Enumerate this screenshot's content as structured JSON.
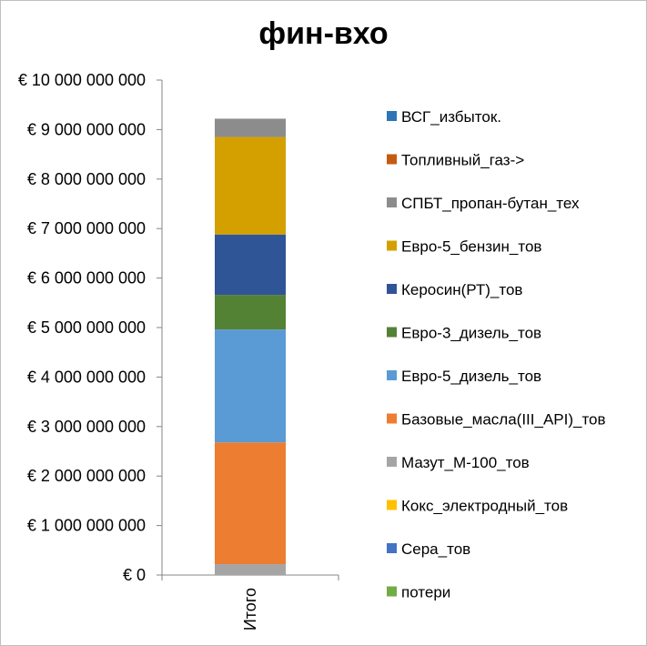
{
  "chart_data": {
    "type": "bar",
    "stacked": true,
    "title": "фин-вхо",
    "categories": [
      "Итого"
    ],
    "ylim": [
      0,
      10000000000
    ],
    "yticks": [
      "€ 0",
      "€ 1 000 000 000",
      "€ 2 000 000 000",
      "€ 3 000 000 000",
      "€ 4 000 000 000",
      "€ 5 000 000 000",
      "€ 6 000 000 000",
      "€ 7 000 000 000",
      "€ 8 000 000 000",
      "€ 9 000 000 000",
      "€ 10 000 000 000"
    ],
    "grid": "vertical-axis-line",
    "legend_position": "right",
    "series": [
      {
        "name": "потери",
        "color": "#70ad47",
        "values": [
          0
        ]
      },
      {
        "name": "Сера_тов",
        "color": "#4472c4",
        "values": [
          0
        ]
      },
      {
        "name": "Кокс_электродный_тов",
        "color": "#ffc000",
        "values": [
          0
        ]
      },
      {
        "name": "Мазут_М-100_тов",
        "color": "#a5a5a5",
        "values": [
          220000000
        ]
      },
      {
        "name": "Базовые_масла(III_API)_тов",
        "color": "#ed7d31",
        "values": [
          2460000000
        ]
      },
      {
        "name": "Евро-5_дизель_тов",
        "color": "#5b9bd5",
        "values": [
          2280000000
        ]
      },
      {
        "name": "Евро-3_дизель_тов",
        "color": "#548235",
        "values": [
          700000000
        ]
      },
      {
        "name": "Керосин(РТ)_тов",
        "color": "#2f5597",
        "values": [
          1220000000
        ]
      },
      {
        "name": "Евро-5_бензин_тов",
        "color": "#d4a000",
        "values": [
          1970000000
        ]
      },
      {
        "name": "СПБТ_пропан-бутан_тех",
        "color": "#8c8c8c",
        "values": [
          370000000
        ]
      },
      {
        "name": "Топливный_газ->",
        "color": "#c55a11",
        "values": [
          0
        ]
      },
      {
        "name": "ВСГ_избыток.",
        "color": "#2e75b6",
        "values": [
          0
        ]
      }
    ]
  }
}
